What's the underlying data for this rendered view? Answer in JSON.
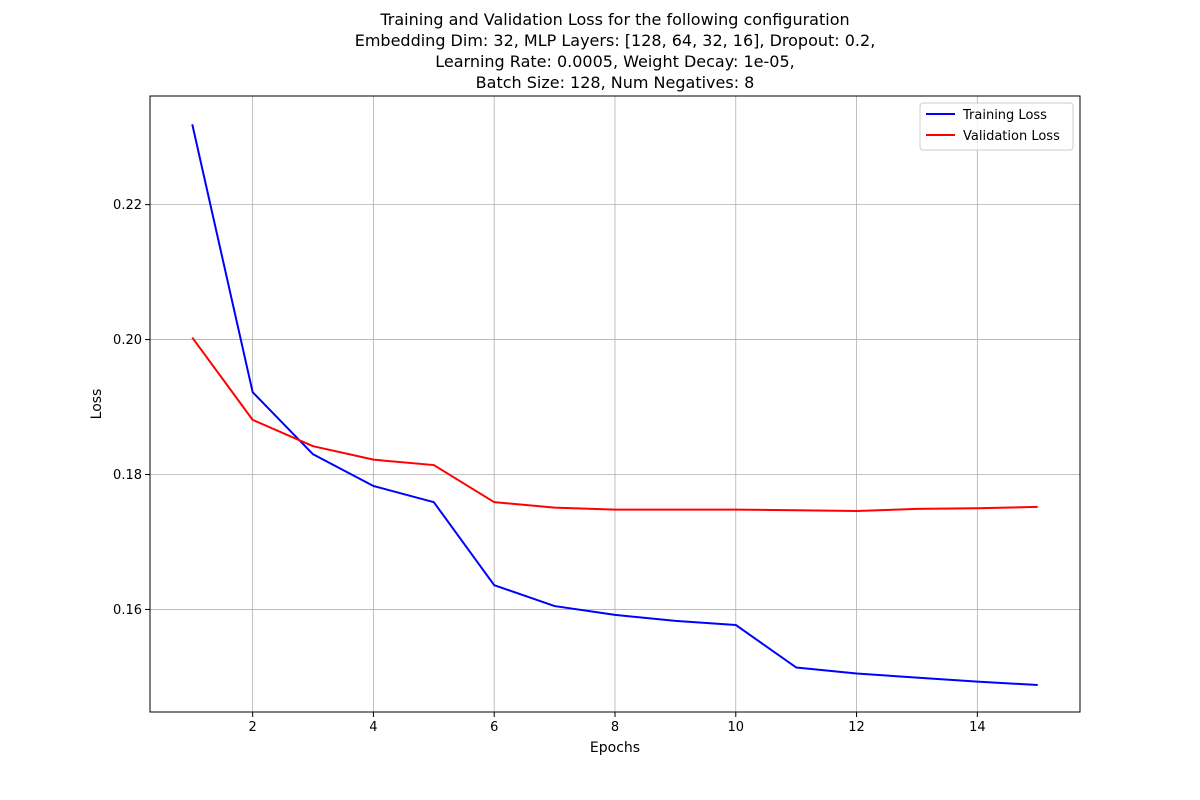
{
  "chart_data": {
    "type": "line",
    "title_lines": [
      "Training and Validation Loss for the following configuration",
      "Embedding Dim: 32, MLP Layers: [128, 64, 32, 16], Dropout: 0.2,",
      "Learning Rate: 0.0005, Weight Decay: 1e-05,",
      "Batch Size: 128, Num Negatives: 8"
    ],
    "xlabel": "Epochs",
    "ylabel": "Loss",
    "xlim": [
      0.3,
      15.7
    ],
    "ylim": [
      0.1448,
      0.2361
    ],
    "xticks": [
      2,
      4,
      6,
      8,
      10,
      12,
      14
    ],
    "xtick_labels": [
      "2",
      "4",
      "6",
      "8",
      "10",
      "12",
      "14"
    ],
    "yticks": [
      0.16,
      0.18,
      0.2,
      0.22
    ],
    "ytick_labels": [
      "0.16",
      "0.18",
      "0.20",
      "0.22"
    ],
    "grid": true,
    "legend_position": "top-right",
    "x": [
      1,
      2,
      3,
      4,
      5,
      6,
      7,
      8,
      9,
      10,
      11,
      12,
      13,
      14,
      15
    ],
    "series": [
      {
        "name": "Training Loss",
        "color": "#0000ff",
        "values": [
          0.2319,
          0.1922,
          0.183,
          0.1783,
          0.1759,
          0.1636,
          0.1605,
          0.1592,
          0.1583,
          0.1577,
          0.1514,
          0.1505,
          0.1499,
          0.1493,
          0.1488
        ]
      },
      {
        "name": "Validation Loss",
        "color": "#ff0000",
        "values": [
          0.2003,
          0.1881,
          0.1842,
          0.1822,
          0.1814,
          0.1759,
          0.1751,
          0.1748,
          0.1748,
          0.1748,
          0.1747,
          0.1746,
          0.1749,
          0.175,
          0.1752
        ]
      }
    ]
  }
}
